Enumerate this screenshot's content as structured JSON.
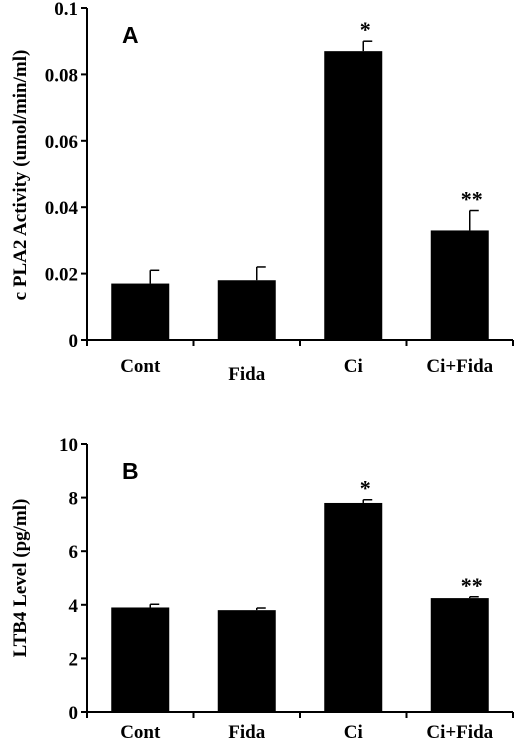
{
  "chart_data": [
    {
      "type": "bar",
      "panel": "A",
      "ylabel": "c PLA2 Activity (umol/min/ml)",
      "categories": [
        "Cont",
        "Fida",
        "Ci",
        "Ci+Fida"
      ],
      "values": [
        0.017,
        0.018,
        0.087,
        0.033
      ],
      "errors": [
        0.004,
        0.004,
        0.003,
        0.006
      ],
      "significance": [
        "",
        "",
        "*",
        "**"
      ],
      "ylim": [
        0,
        0.1
      ],
      "yticks": [
        0,
        0.02,
        0.04,
        0.06,
        0.08,
        0.1
      ],
      "ytick_labels": [
        "0",
        "0.02",
        "0.04",
        "0.06",
        "0.08",
        "0.1"
      ],
      "bar_color": "#000000"
    },
    {
      "type": "bar",
      "panel": "B",
      "ylabel": "LTB4 Level (pg/ml)",
      "categories": [
        "Cont",
        "Fida",
        "Ci",
        "Ci+Fida"
      ],
      "values": [
        3.9,
        3.8,
        7.8,
        4.25
      ],
      "errors": [
        0.12,
        0.08,
        0.12,
        0.05
      ],
      "significance": [
        "",
        "",
        "*",
        "**"
      ],
      "ylim": [
        0,
        10
      ],
      "yticks": [
        0,
        2,
        4,
        6,
        8,
        10
      ],
      "ytick_labels": [
        "0",
        "2",
        "4",
        "6",
        "8",
        "10"
      ],
      "bar_color": "#000000"
    }
  ]
}
